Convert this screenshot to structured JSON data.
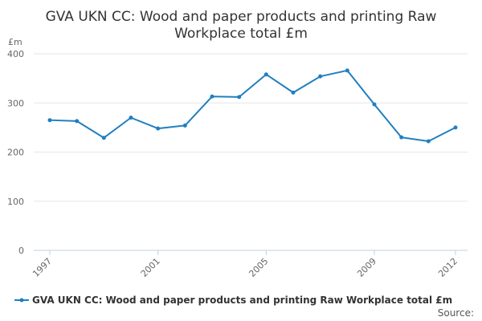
{
  "chart_data": {
    "type": "line",
    "title_line1": "GVA UKN CC: Wood and paper products and printing Raw",
    "title_line2": "Workplace total £m",
    "ylabel": "£m",
    "xlabel": "",
    "x": [
      1997,
      1998,
      1999,
      2000,
      2001,
      2002,
      2003,
      2004,
      2005,
      2006,
      2007,
      2008,
      2009,
      2010,
      2011,
      2012
    ],
    "x_tick_labels": [
      "1997",
      "2001",
      "2005",
      "2009",
      "2012"
    ],
    "x_tick_values": [
      1997,
      2001,
      2005,
      2009,
      2012
    ],
    "y_ticks": [
      0,
      100,
      200,
      300,
      400
    ],
    "y_tick_labels": [
      "0",
      "100",
      "200",
      "300",
      "400"
    ],
    "ylim": [
      0,
      400
    ],
    "series": [
      {
        "name": "GVA UKN CC: Wood and paper products and printing Raw Workplace total £m",
        "values": [
          265,
          263,
          229,
          270,
          248,
          254,
          313,
          312,
          358,
          321,
          354,
          366,
          297,
          230,
          222,
          250
        ]
      }
    ],
    "grid": true,
    "legend_position": "bottom",
    "colors": {
      "series": "#1f7fbf"
    }
  },
  "source_label": "Source:"
}
